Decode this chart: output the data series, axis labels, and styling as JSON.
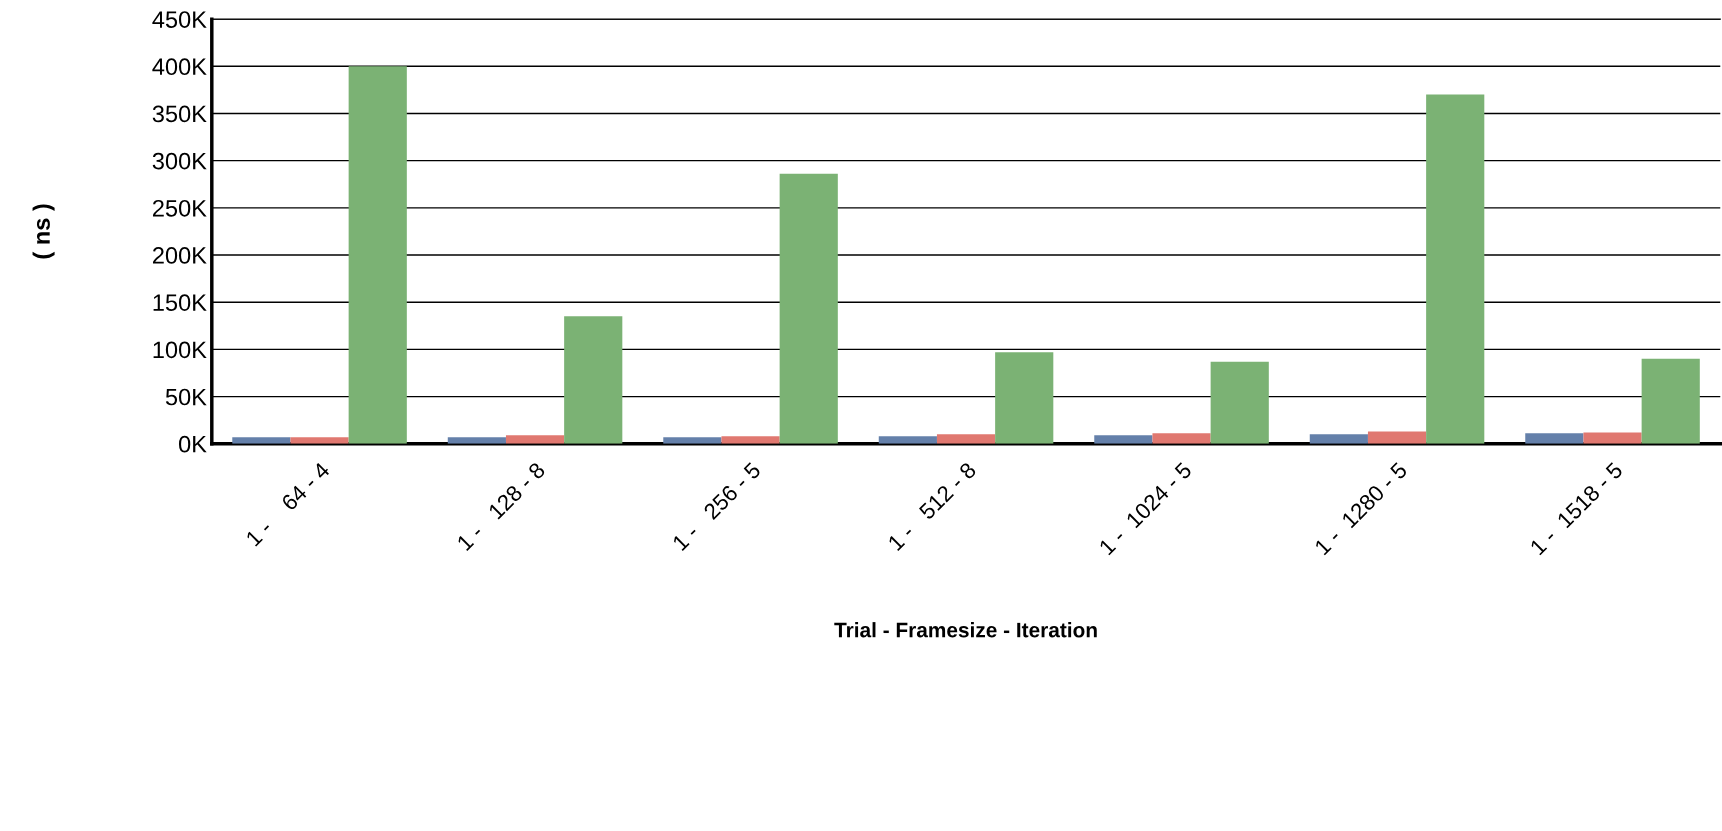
{
  "chart_data": {
    "type": "bar",
    "xlabel": "Trial - Framesize - Iteration",
    "ylabel": "( ns )",
    "categories": [
      "1 -    64 - 4",
      "1 -   128 - 8",
      "1 -   256 - 5",
      "1 -   512 - 8",
      "1 -  1024 - 5",
      "1 -  1280 - 5",
      "1 -  1518 - 5"
    ],
    "series": [
      {
        "color": "#6480aa",
        "values": [
          7000,
          7000,
          7000,
          8000,
          9000,
          10000,
          11000
        ]
      },
      {
        "color": "#e07870",
        "values": [
          7000,
          9000,
          8000,
          10000,
          11000,
          13000,
          12000
        ]
      },
      {
        "color": "#7bb274",
        "values": [
          400000,
          135000,
          286000,
          97000,
          87000,
          370000,
          90000
        ]
      }
    ],
    "ylim": [
      0,
      450000
    ],
    "yticks": [
      {
        "value": 0,
        "label": "0K"
      },
      {
        "value": 50000,
        "label": "50K"
      },
      {
        "value": 100000,
        "label": "100K"
      },
      {
        "value": 150000,
        "label": "150K"
      },
      {
        "value": 200000,
        "label": "200K"
      },
      {
        "value": 250000,
        "label": "250K"
      },
      {
        "value": 300000,
        "label": "300K"
      },
      {
        "value": 350000,
        "label": "350K"
      },
      {
        "value": 400000,
        "label": "400K"
      },
      {
        "value": 450000,
        "label": "450K"
      }
    ],
    "grid": "y",
    "legend": false
  }
}
